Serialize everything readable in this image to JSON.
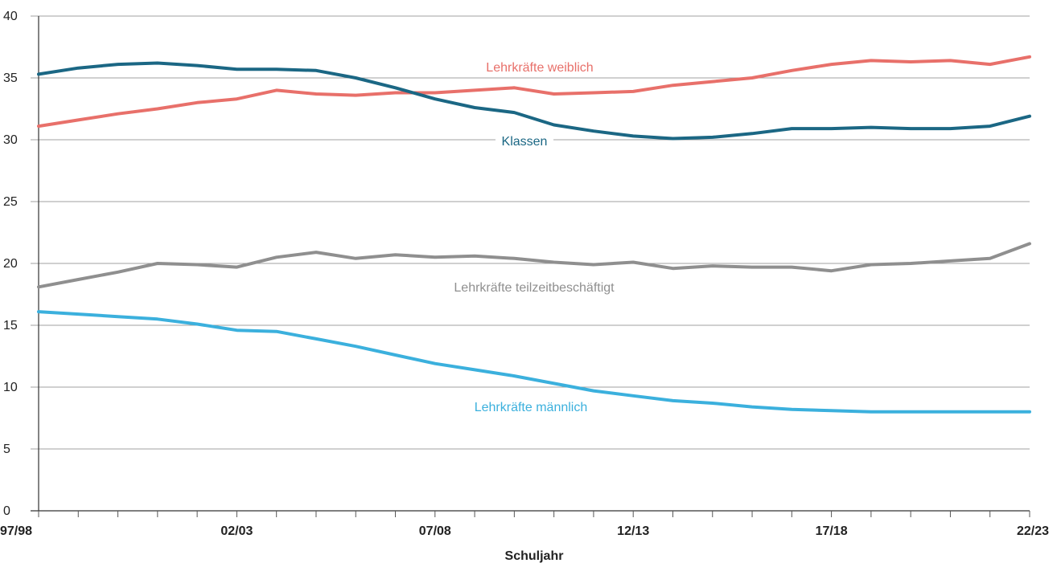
{
  "chart_data": {
    "type": "line",
    "xlabel": "Schuljahr",
    "ylabel": "",
    "ylim": [
      0,
      40
    ],
    "yticks": [
      0,
      5,
      10,
      15,
      20,
      25,
      30,
      35,
      40
    ],
    "grid": true,
    "x": [
      "97/98",
      "98/99",
      "99/00",
      "00/01",
      "01/02",
      "02/03",
      "03/04",
      "04/05",
      "05/06",
      "06/07",
      "07/08",
      "08/09",
      "09/10",
      "10/11",
      "11/12",
      "12/13",
      "13/14",
      "14/15",
      "15/16",
      "16/17",
      "17/18",
      "18/19",
      "19/20",
      "20/21",
      "21/22",
      "22/23"
    ],
    "xtick_labels": [
      "97/98",
      "",
      "",
      "",
      "",
      "02/03",
      "",
      "",
      "",
      "",
      "07/08",
      "",
      "",
      "",
      "",
      "12/13",
      "",
      "",
      "",
      "",
      "17/18",
      "",
      "",
      "",
      "",
      "22/23"
    ],
    "series": [
      {
        "name": "Lehrkräfte weiblich",
        "color": "#e8706a",
        "values": [
          31.1,
          31.6,
          32.1,
          32.5,
          33.0,
          33.3,
          34.0,
          33.7,
          33.6,
          33.8,
          33.8,
          34.0,
          34.2,
          33.7,
          33.8,
          33.9,
          34.4,
          34.7,
          35.0,
          35.6,
          36.1,
          36.4,
          36.3,
          36.4,
          36.1,
          36.7
        ]
      },
      {
        "name": "Klassen",
        "color": "#1b6784",
        "values": [
          35.3,
          35.8,
          36.1,
          36.2,
          36.0,
          35.7,
          35.7,
          35.6,
          35.0,
          34.2,
          33.3,
          32.6,
          32.2,
          31.2,
          30.7,
          30.3,
          30.1,
          30.2,
          30.5,
          30.9,
          30.9,
          31.0,
          30.9,
          30.9,
          31.1,
          31.9
        ]
      },
      {
        "name": "Lehrkräfte teilzeitbeschäftigt",
        "color": "#8f8f8f",
        "values": [
          18.1,
          18.7,
          19.3,
          20.0,
          19.9,
          19.7,
          20.5,
          20.9,
          20.4,
          20.7,
          20.5,
          20.6,
          20.4,
          20.1,
          19.9,
          20.1,
          19.6,
          19.8,
          19.7,
          19.7,
          19.4,
          19.9,
          20.0,
          20.2,
          20.4,
          21.6
        ]
      },
      {
        "name": "Lehrkräfte männlich",
        "color": "#3bb0dd",
        "values": [
          16.1,
          15.9,
          15.7,
          15.5,
          15.1,
          14.6,
          14.5,
          13.9,
          13.3,
          12.6,
          11.9,
          11.4,
          10.9,
          10.3,
          9.7,
          9.3,
          8.9,
          8.7,
          8.4,
          8.2,
          8.1,
          8.0,
          8.0,
          8.0,
          8.0,
          8.0
        ]
      }
    ]
  }
}
